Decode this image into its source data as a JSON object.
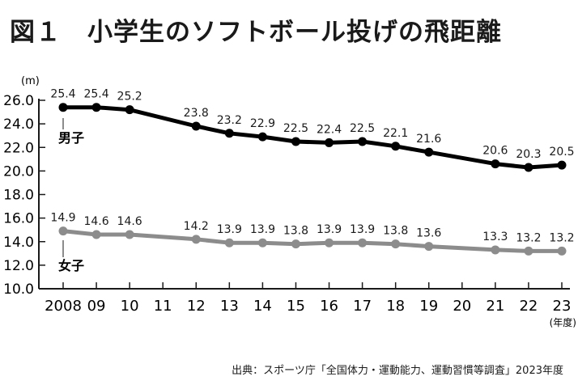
{
  "chart_data": {
    "type": "line",
    "title": "図１　小学生のソフトボール投げの飛距離",
    "ylabel": "(m)",
    "xlabel": "(年度)",
    "x": [
      "2008",
      "09",
      "10",
      "11",
      "12",
      "13",
      "14",
      "15",
      "16",
      "17",
      "18",
      "19",
      "20",
      "21",
      "22",
      "23"
    ],
    "yticks": [
      "26.0",
      "24.0",
      "22.0",
      "20.0",
      "18.0",
      "16.0",
      "14.0",
      "12.0",
      "10.0"
    ],
    "ylim": [
      10,
      26
    ],
    "grid": false,
    "series": [
      {
        "name": "男子",
        "color": "#000000",
        "x": [
          "2008",
          "09",
          "10",
          "12",
          "13",
          "14",
          "15",
          "16",
          "17",
          "18",
          "19",
          "21",
          "22",
          "23"
        ],
        "values": [
          25.4,
          25.4,
          25.2,
          23.8,
          23.2,
          22.9,
          22.5,
          22.4,
          22.5,
          22.1,
          21.6,
          20.6,
          20.3,
          20.5
        ]
      },
      {
        "name": "女子",
        "color": "#8c8c8c",
        "x": [
          "2008",
          "09",
          "10",
          "12",
          "13",
          "14",
          "15",
          "16",
          "17",
          "18",
          "19",
          "21",
          "22",
          "23"
        ],
        "values": [
          14.9,
          14.6,
          14.6,
          14.2,
          13.9,
          13.9,
          13.8,
          13.9,
          13.9,
          13.8,
          13.6,
          13.3,
          13.2,
          13.2
        ]
      }
    ],
    "source": "出典：スポーツ庁「全国体力・運動能力、運動習慣等調査」2023年度"
  }
}
